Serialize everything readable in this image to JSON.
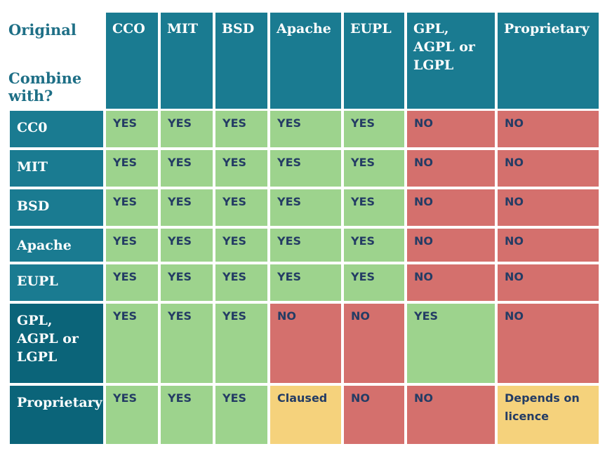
{
  "corner": {
    "original": "Original",
    "combine_line1": "Combine",
    "combine_line2": "with?"
  },
  "columns": [
    "CCO",
    "MIT",
    "BSD",
    "Apache",
    "EUPL",
    "GPL, AGPL or LGPL",
    "Proprietary"
  ],
  "rows": [
    {
      "label": "CC0",
      "values": [
        "YES",
        "YES",
        "YES",
        "YES",
        "YES",
        "NO",
        "NO"
      ]
    },
    {
      "label": "MIT",
      "values": [
        "YES",
        "YES",
        "YES",
        "YES",
        "YES",
        "NO",
        "NO"
      ]
    },
    {
      "label": "BSD",
      "values": [
        "YES",
        "YES",
        "YES",
        "YES",
        "YES",
        "NO",
        "NO"
      ]
    },
    {
      "label": "Apache",
      "values": [
        "YES",
        "YES",
        "YES",
        "YES",
        "YES",
        "NO",
        "NO"
      ]
    },
    {
      "label": "EUPL",
      "values": [
        "YES",
        "YES",
        "YES",
        "YES",
        "YES",
        "NO",
        "NO"
      ]
    },
    {
      "label": "GPL, AGPL or LGPL",
      "values": [
        "YES",
        "YES",
        "YES",
        "NO",
        "NO",
        "YES",
        "NO"
      ]
    },
    {
      "label": "Proprietary",
      "values": [
        "YES",
        "YES",
        "YES",
        "Claused",
        "NO",
        "NO",
        "Depends on licence"
      ]
    }
  ],
  "colors": {
    "header": "#1a7b91",
    "header_dark": "#0b6479",
    "yes": "#9dd38d",
    "no": "#d4706d",
    "conditional": "#f5d27c",
    "corner_text": "#1e6f86",
    "cell_text": "#243c64"
  }
}
